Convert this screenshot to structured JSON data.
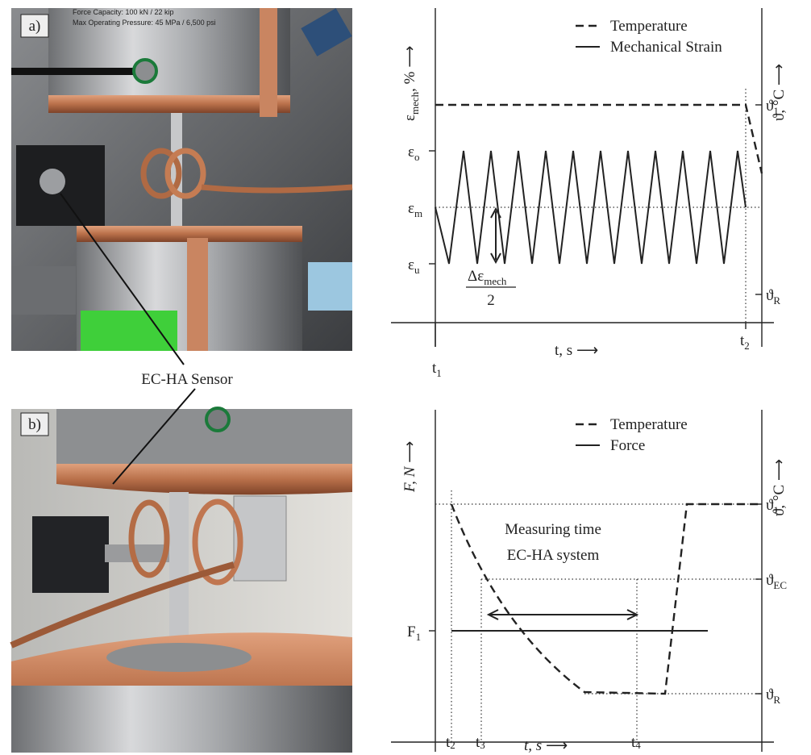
{
  "panel_a": {
    "label": "a)",
    "photo_text": [
      "Force Capacity: 100 kN / 22 kip",
      "Max Operating Pressure: 45 MPa / 6,500 psi"
    ]
  },
  "panel_b": {
    "label": "b)"
  },
  "sensor_label": "EC-HA Sensor",
  "diagram_a": {
    "y_label": {
      "base": "ε",
      "sub": "mech",
      "unit": ", %"
    },
    "y2_label": "ϑ, °C",
    "x_label": "t, s",
    "legend": [
      "Temperature",
      "Mechanical Strain"
    ],
    "levels": [
      {
        "base": "ε",
        "sub": "o"
      },
      {
        "base": "ε",
        "sub": "m"
      },
      {
        "base": "ε",
        "sub": "u"
      }
    ],
    "delta_label": {
      "base": "Δε",
      "sub": "mech",
      "denominator": "2"
    },
    "right_levels": [
      {
        "base": "ϑ",
        "sub": "1"
      },
      {
        "base": "ϑ",
        "sub": "R"
      }
    ],
    "time_marks": [
      {
        "base": "t",
        "sub": "1"
      },
      {
        "base": "t",
        "sub": "2"
      }
    ]
  },
  "diagram_b": {
    "y_label": "F, N",
    "y2_label": "ϑ, °C",
    "x_label": "t, s",
    "legend": [
      "Temperature",
      "Force"
    ],
    "annotation": [
      "Measuring time",
      "EC-HA system"
    ],
    "level": {
      "base": "F",
      "sub": "1"
    },
    "right_levels": [
      {
        "base": "ϑ",
        "sub": "1"
      },
      {
        "base": "ϑ",
        "sub": "EC"
      },
      {
        "base": "ϑ",
        "sub": "R"
      }
    ],
    "time_marks": [
      {
        "base": "t",
        "sub": "2"
      },
      {
        "base": "t",
        "sub": "3"
      },
      {
        "base": "t",
        "sub": "4"
      }
    ]
  }
}
